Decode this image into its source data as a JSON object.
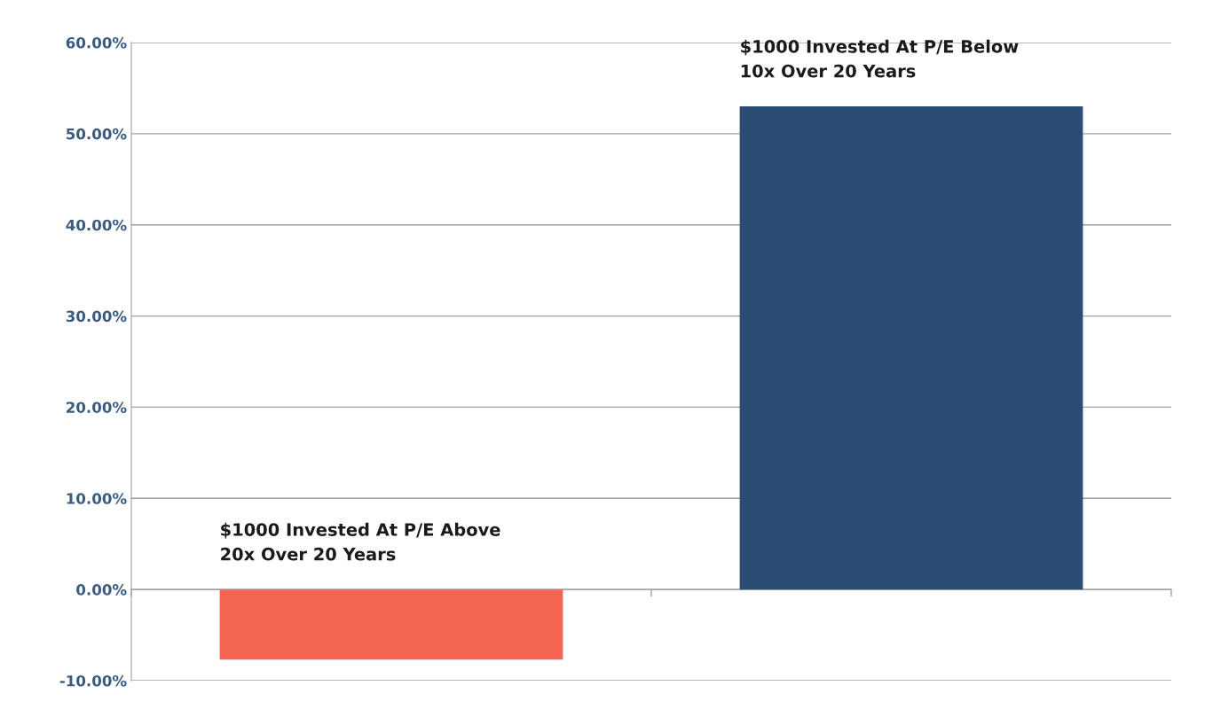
{
  "chart_data": {
    "type": "bar",
    "categories": [
      "$1000 Invested At P/E Above\n20x Over 20 Years",
      "$1000 Invested At P/E Below\n10x Over 20 Years"
    ],
    "values": [
      -7.7,
      53.0
    ],
    "colors": [
      "#f46453",
      "#2b4d73"
    ],
    "ylim": [
      -10,
      60
    ],
    "yticks": [
      {
        "value": -10,
        "label": "-10.00%"
      },
      {
        "value": 0,
        "label": "0.00%"
      },
      {
        "value": 10,
        "label": "10.00%"
      },
      {
        "value": 20,
        "label": "20.00%"
      },
      {
        "value": 30,
        "label": "30.00%"
      },
      {
        "value": 40,
        "label": "40.00%"
      },
      {
        "value": 50,
        "label": "50.00%"
      },
      {
        "value": 60,
        "label": "60.00%"
      }
    ],
    "grid": "y",
    "tick_labels": "y"
  }
}
